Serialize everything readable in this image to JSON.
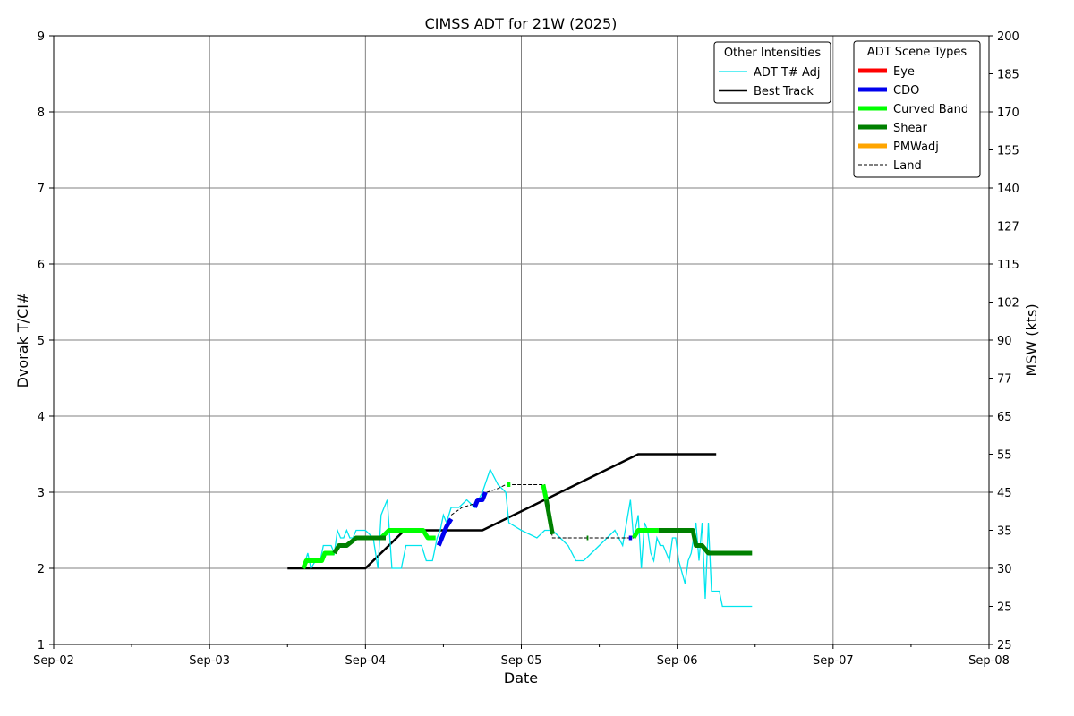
{
  "chart_data": {
    "type": "line",
    "title": "CIMSS ADT for 21W (2025)",
    "xlabel": "Date",
    "ylabel": "Dvorak T/CI#",
    "y2label": "MSW (kts)",
    "x_ticks": [
      "Sep-02",
      "Sep-03",
      "Sep-04",
      "Sep-05",
      "Sep-06",
      "Sep-07",
      "Sep-08"
    ],
    "xlim": [
      0,
      6
    ],
    "ylim": [
      1,
      9
    ],
    "y_ticks": [
      1,
      2,
      3,
      4,
      5,
      6,
      7,
      8,
      9
    ],
    "y2_ticks": [
      {
        "t": 1,
        "label": "25"
      },
      {
        "t": 1.5,
        "label": "25"
      },
      {
        "t": 2,
        "label": "30"
      },
      {
        "t": 2.5,
        "label": "35"
      },
      {
        "t": 3,
        "label": "45"
      },
      {
        "t": 3.5,
        "label": "55"
      },
      {
        "t": 4,
        "label": "65"
      },
      {
        "t": 4.5,
        "label": "77"
      },
      {
        "t": 5,
        "label": "90"
      },
      {
        "t": 5.5,
        "label": "102"
      },
      {
        "t": 6,
        "label": "115"
      },
      {
        "t": 6.5,
        "label": "127"
      },
      {
        "t": 7,
        "label": "140"
      },
      {
        "t": 7.5,
        "label": "155"
      },
      {
        "t": 8,
        "label": "170"
      },
      {
        "t": 8.5,
        "label": "185"
      },
      {
        "t": 9,
        "label": "200"
      }
    ],
    "grid": true,
    "colors": {
      "adt_adj": "#00e5ee",
      "best_track": "#000000",
      "eye": "#ff0000",
      "cdo": "#0000ee",
      "curved_band": "#00ff00",
      "shear": "#008000",
      "pmwadj": "#ffa500",
      "land": "#000000"
    },
    "legend_other": {
      "title": "Other Intensities",
      "placement": "top-right",
      "entries": [
        {
          "label": "ADT T# Adj",
          "key": "adt_adj"
        },
        {
          "label": "Best Track",
          "key": "best_track"
        }
      ]
    },
    "legend_scene": {
      "title": "ADT Scene Types",
      "placement": "top-right",
      "entries": [
        {
          "label": "Eye",
          "key": "eye"
        },
        {
          "label": "CDO",
          "key": "cdo"
        },
        {
          "label": "Curved Band",
          "key": "curved_band"
        },
        {
          "label": "Shear",
          "key": "shear"
        },
        {
          "label": "PMWadj",
          "key": "pmwadj"
        },
        {
          "label": "Land",
          "key": "land"
        }
      ]
    },
    "series": [
      {
        "name": "Best Track",
        "key": "best_track",
        "x": [
          1.5,
          2.0,
          2.25,
          2.75,
          3.75,
          4.25
        ],
        "y": [
          2.0,
          2.0,
          2.5,
          2.5,
          3.5,
          3.5
        ]
      },
      {
        "name": "ADT T# Adj",
        "key": "adt_adj",
        "x": [
          1.6,
          1.63,
          1.65,
          1.68,
          1.71,
          1.73,
          1.75,
          1.78,
          1.8,
          1.82,
          1.84,
          1.86,
          1.88,
          1.9,
          1.92,
          1.94,
          1.97,
          2.0,
          2.05,
          2.08,
          2.1,
          2.12,
          2.14,
          2.17,
          2.2,
          2.23,
          2.26,
          2.3,
          2.33,
          2.36,
          2.39,
          2.41,
          2.43,
          2.44,
          2.45,
          2.46,
          2.48,
          2.5,
          2.52,
          2.55,
          2.6,
          2.65,
          2.7,
          2.75,
          2.8,
          2.85,
          2.9,
          2.92,
          3.0,
          3.1,
          3.15,
          3.2,
          3.25,
          3.3,
          3.35,
          3.4,
          3.45,
          3.5,
          3.55,
          3.6,
          3.65,
          3.7,
          3.72,
          3.75,
          3.77,
          3.79,
          3.81,
          3.83,
          3.85,
          3.87,
          3.89,
          3.91,
          3.93,
          3.95,
          3.97,
          3.99,
          4.01,
          4.03,
          4.05,
          4.07,
          4.09,
          4.12,
          4.14,
          4.16,
          4.18,
          4.2,
          4.22,
          4.23,
          4.25,
          4.27,
          4.29,
          4.31,
          4.33,
          4.35,
          4.4,
          4.48
        ],
        "y": [
          2.0,
          2.2,
          2.0,
          2.1,
          2.1,
          2.3,
          2.3,
          2.3,
          2.2,
          2.5,
          2.4,
          2.4,
          2.5,
          2.4,
          2.4,
          2.5,
          2.5,
          2.5,
          2.4,
          2.0,
          2.7,
          2.8,
          2.9,
          2.0,
          2.0,
          2.0,
          2.3,
          2.3,
          2.3,
          2.3,
          2.1,
          2.1,
          2.1,
          2.2,
          2.3,
          2.4,
          2.5,
          2.7,
          2.6,
          2.8,
          2.8,
          2.9,
          2.8,
          3.0,
          3.3,
          3.1,
          3.0,
          2.6,
          2.5,
          2.4,
          2.5,
          2.5,
          2.4,
          2.3,
          2.1,
          2.1,
          2.2,
          2.3,
          2.4,
          2.5,
          2.3,
          2.9,
          2.4,
          2.7,
          2.0,
          2.6,
          2.5,
          2.2,
          2.1,
          2.4,
          2.3,
          2.3,
          2.2,
          2.1,
          2.4,
          2.4,
          2.1,
          1.95,
          1.8,
          2.1,
          2.2,
          2.6,
          2.1,
          2.6,
          1.6,
          2.6,
          1.7,
          1.7,
          1.7,
          1.7,
          1.5,
          1.5,
          1.5,
          1.5,
          1.5,
          1.5
        ]
      },
      {
        "name": "Land",
        "key": "land",
        "x": [
          2.55,
          2.62,
          2.7,
          2.78,
          2.85,
          2.9,
          3.0,
          3.15,
          3.2,
          3.45,
          3.6,
          3.72
        ],
        "y": [
          2.7,
          2.8,
          2.85,
          3.0,
          3.05,
          3.1,
          3.1,
          3.1,
          2.4,
          2.4,
          2.4,
          2.4
        ]
      },
      {
        "name": "Curved Band",
        "key": "curved_band",
        "segments": [
          {
            "x": [
              1.6,
              1.62,
              1.72,
              1.74,
              1.76,
              1.8
            ],
            "y": [
              2.0,
              2.1,
              2.1,
              2.2,
              2.2,
              2.2
            ]
          },
          {
            "x": [
              2.1,
              2.15,
              2.37,
              2.4,
              2.45
            ],
            "y": [
              2.4,
              2.5,
              2.5,
              2.4,
              2.4
            ]
          },
          {
            "x": [
              2.91,
              2.93
            ],
            "y": [
              3.1,
              3.1
            ]
          },
          {
            "x": [
              3.14,
              3.16
            ],
            "y": [
              3.1,
              2.9
            ]
          },
          {
            "x": [
              3.72,
              3.75,
              3.88
            ],
            "y": [
              2.4,
              2.5,
              2.5
            ]
          }
        ]
      },
      {
        "name": "Shear",
        "key": "shear",
        "segments": [
          {
            "x": [
              1.8,
              1.83,
              1.88,
              1.91,
              1.94,
              2.13
            ],
            "y": [
              2.2,
              2.3,
              2.3,
              2.35,
              2.4,
              2.4
            ]
          },
          {
            "x": [
              3.16,
              3.2
            ],
            "y": [
              2.9,
              2.45
            ]
          },
          {
            "x": [
              3.42,
              3.43
            ],
            "y": [
              2.4,
              2.4
            ]
          },
          {
            "x": [
              3.88,
              4.1,
              4.12,
              4.16,
              4.2,
              4.48
            ],
            "y": [
              2.5,
              2.5,
              2.3,
              2.3,
              2.2,
              2.2
            ]
          }
        ]
      },
      {
        "name": "CDO",
        "key": "cdo",
        "segments": [
          {
            "x": [
              2.47,
              2.48,
              2.5,
              2.52,
              2.55
            ],
            "y": [
              2.3,
              2.35,
              2.45,
              2.55,
              2.65
            ]
          },
          {
            "x": [
              2.7,
              2.72,
              2.75,
              2.77
            ],
            "y": [
              2.8,
              2.9,
              2.9,
              3.0
            ]
          },
          {
            "x": [
              3.69,
              3.71
            ],
            "y": [
              2.4,
              2.4
            ]
          }
        ]
      }
    ]
  }
}
